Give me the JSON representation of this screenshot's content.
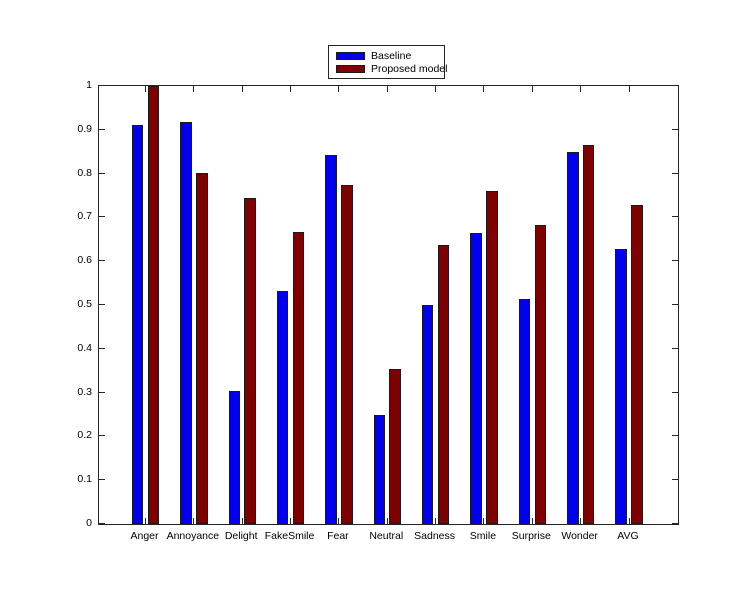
{
  "chart_data": {
    "type": "bar",
    "title": "",
    "xlabel": "",
    "ylabel": "",
    "categories": [
      "Anger",
      "Annoyance",
      "Delight",
      "FakeSmile",
      "Fear",
      "Neutral",
      "Sadness",
      "Smile",
      "Surprise",
      "Wonder",
      "AVG"
    ],
    "series": [
      {
        "name": "Baseline",
        "color": "#0000EE",
        "values": [
          0.91,
          0.918,
          0.304,
          0.532,
          0.842,
          0.249,
          0.5,
          0.665,
          0.514,
          0.85,
          0.628
        ]
      },
      {
        "name": "Proposed model",
        "color": "#800000",
        "values": [
          1.0,
          0.801,
          0.744,
          0.667,
          0.773,
          0.353,
          0.636,
          0.76,
          0.683,
          0.865,
          0.728
        ]
      }
    ],
    "ylim": [
      0,
      1
    ],
    "ytick_step": 0.1,
    "ytick_labels": [
      "0",
      "0.1",
      "0.2",
      "0.3",
      "0.4",
      "0.5",
      "0.6",
      "0.7",
      "0.8",
      "0.9",
      "1"
    ],
    "grid": false,
    "legend_position": "top-center",
    "axis_color": "#262626",
    "background_color": "#ffffff"
  }
}
